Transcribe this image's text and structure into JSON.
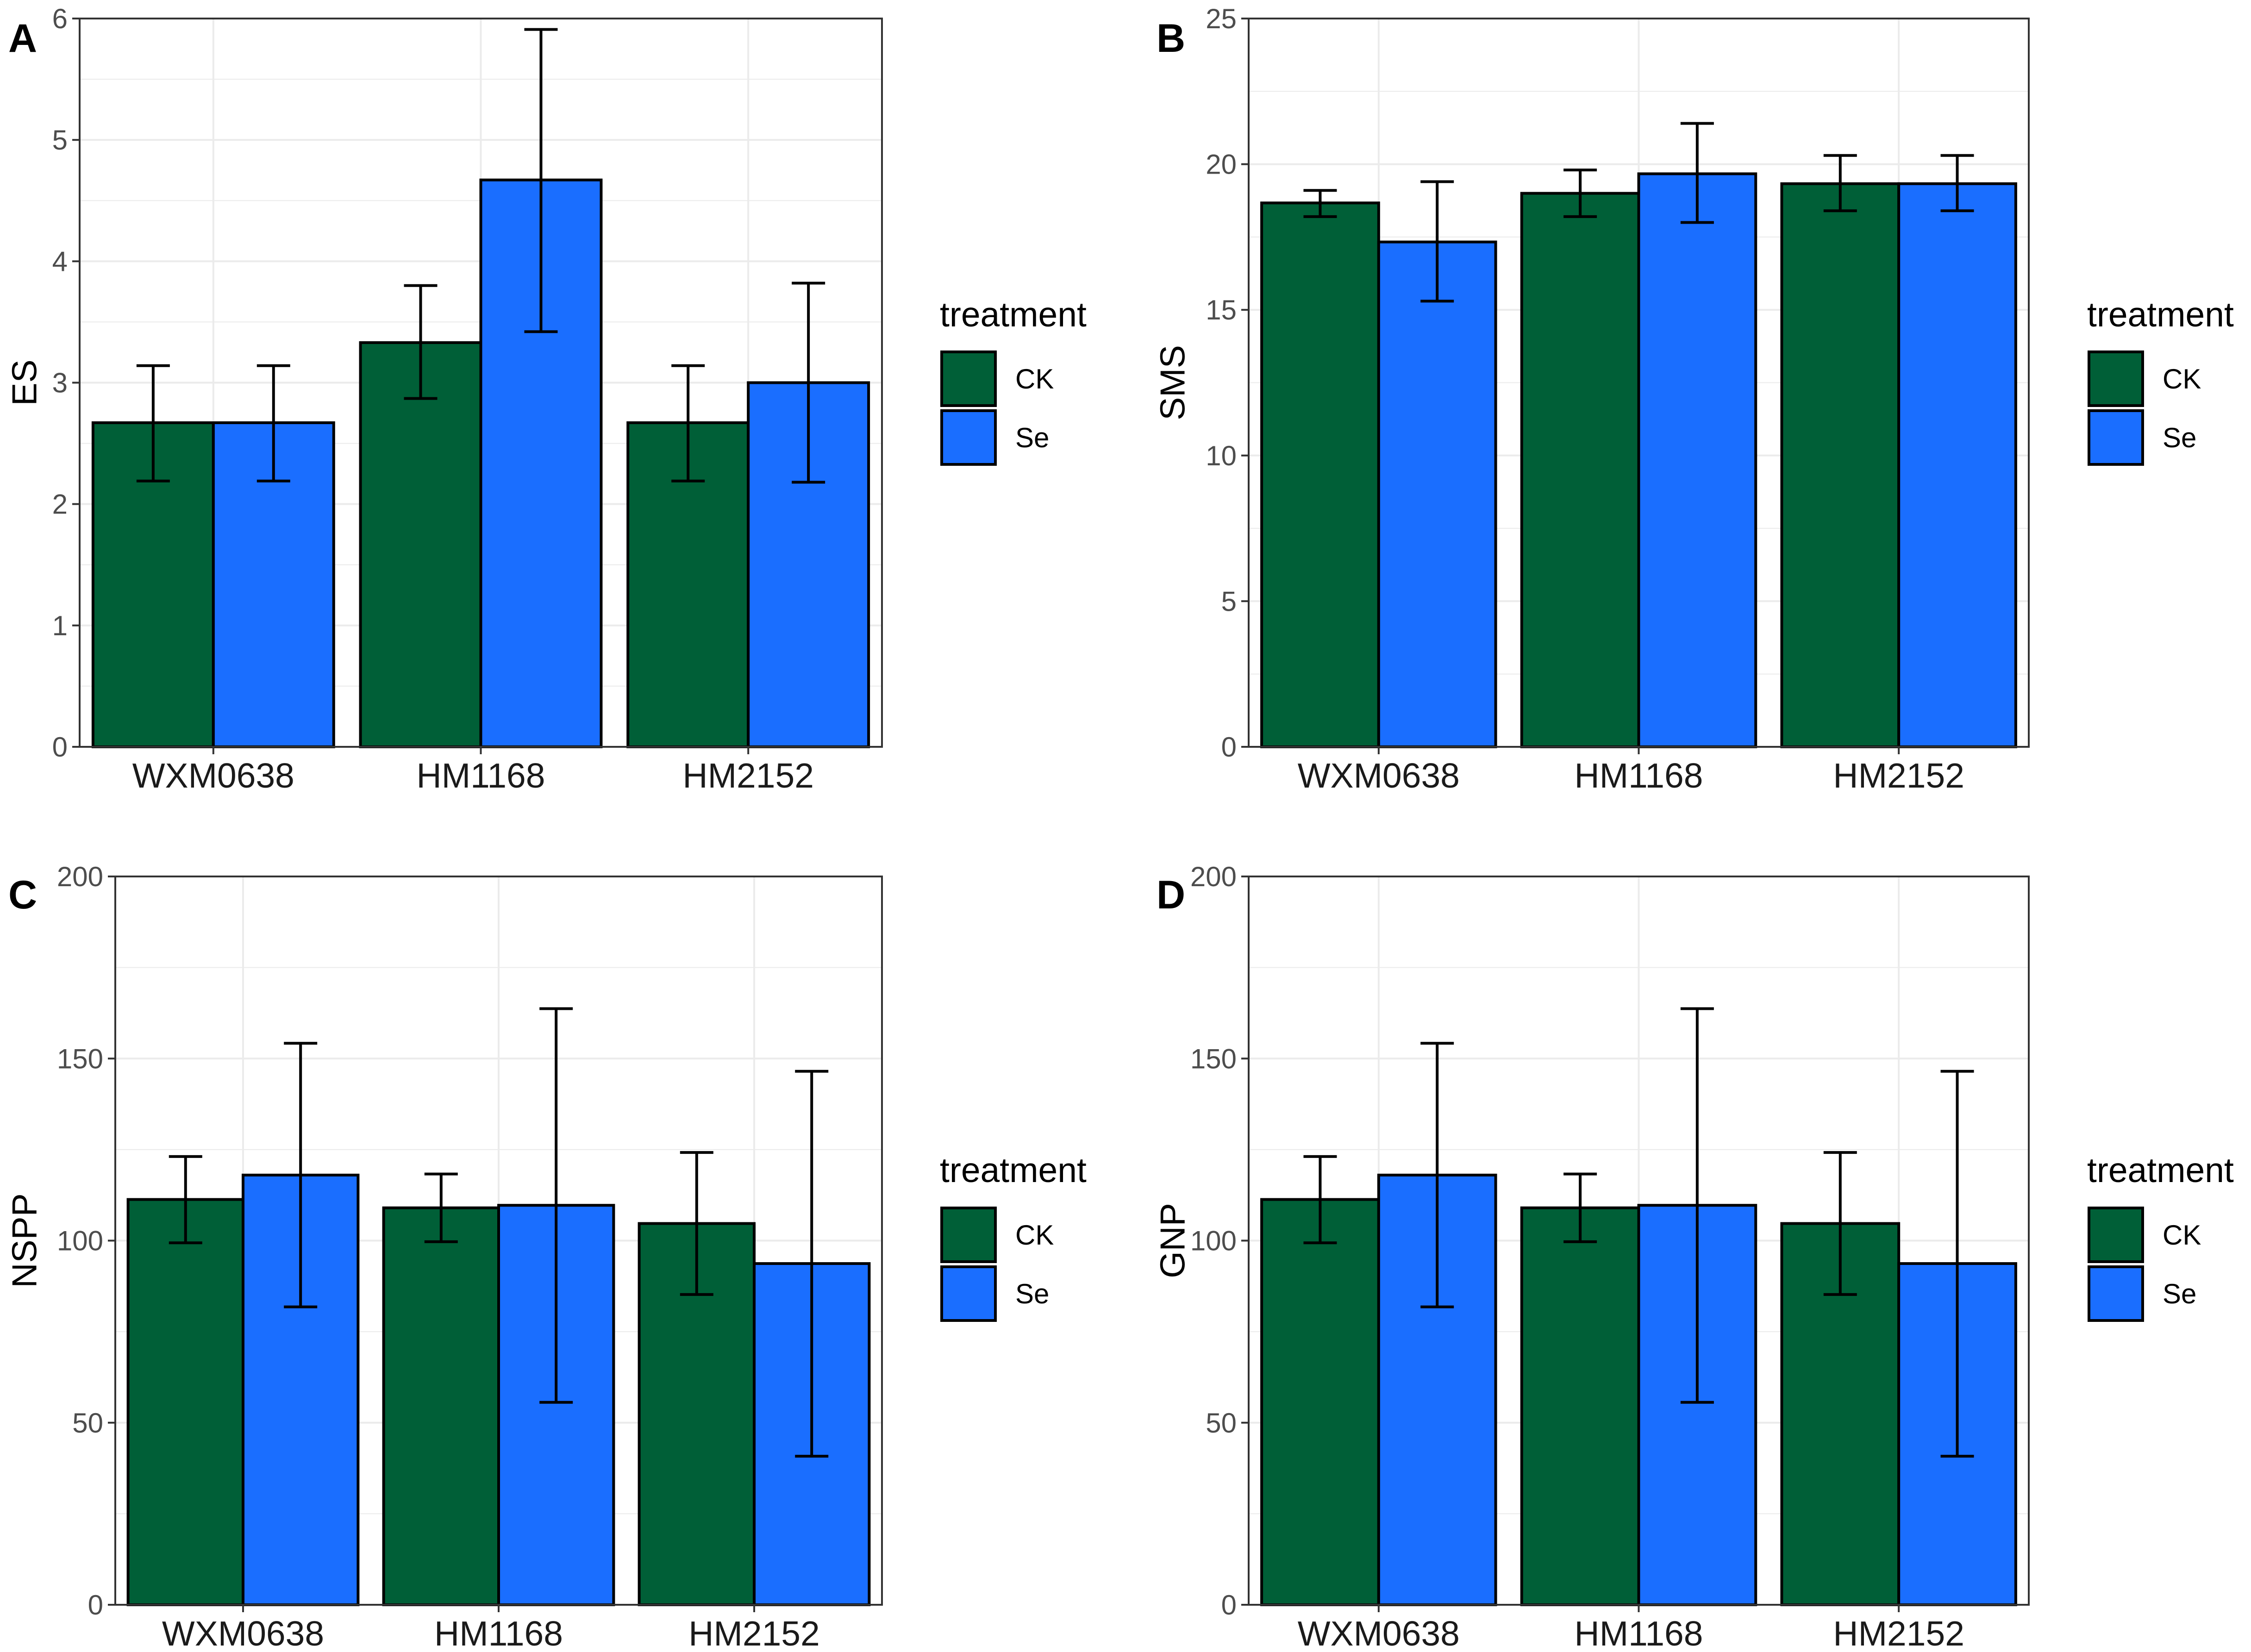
{
  "figure": {
    "legend_title": "treatment",
    "legend_entries": [
      "CK",
      "Se"
    ],
    "colors": {
      "CK": "#005F37",
      "Se": "#1A6EFF",
      "grid": "#EBEBEB",
      "border": "#333333"
    }
  },
  "chart_data": [
    {
      "panel": "A",
      "type": "bar",
      "ylabel": "ES",
      "xlabel": "",
      "categories": [
        "WXM0638",
        "HM1168",
        "HM2152"
      ],
      "ylim": [
        0,
        6
      ],
      "yticks": [
        0,
        1,
        2,
        3,
        4,
        5,
        6
      ],
      "ytick_labels": [
        "0",
        "1",
        "2",
        "3",
        "4",
        "5",
        "6"
      ],
      "grid": true,
      "legend_position": "right",
      "series": [
        {
          "name": "CK",
          "values": [
            2.67,
            3.33,
            2.67
          ],
          "err_low": [
            2.19,
            2.87,
            2.19
          ],
          "err_high": [
            3.14,
            3.8,
            3.14
          ]
        },
        {
          "name": "Se",
          "values": [
            2.67,
            4.67,
            3.0
          ],
          "err_low": [
            2.19,
            3.42,
            2.18
          ],
          "err_high": [
            3.14,
            5.91,
            3.82
          ]
        }
      ]
    },
    {
      "panel": "B",
      "type": "bar",
      "ylabel": "SMS",
      "xlabel": "",
      "categories": [
        "WXM0638",
        "HM1168",
        "HM2152"
      ],
      "ylim": [
        0,
        25
      ],
      "yticks": [
        0,
        5,
        10,
        15,
        20,
        25
      ],
      "ytick_labels": [
        "0",
        "5",
        "10",
        "15",
        "20",
        "25"
      ],
      "grid": true,
      "legend_position": "right",
      "series": [
        {
          "name": "CK",
          "values": [
            18.67,
            19.0,
            19.33
          ],
          "err_low": [
            18.2,
            18.2,
            18.4
          ],
          "err_high": [
            19.1,
            19.8,
            20.3
          ]
        },
        {
          "name": "Se",
          "values": [
            17.33,
            19.67,
            19.33
          ],
          "err_low": [
            15.3,
            18.0,
            18.4
          ],
          "err_high": [
            19.4,
            21.4,
            20.3
          ]
        }
      ]
    },
    {
      "panel": "C",
      "type": "bar",
      "ylabel": "NSPP",
      "xlabel": "",
      "categories": [
        "WXM0638",
        "HM1168",
        "HM2152"
      ],
      "ylim": [
        0,
        200
      ],
      "yticks": [
        0,
        50,
        100,
        150,
        200
      ],
      "ytick_labels": [
        "0",
        "50",
        "100",
        "150",
        "200"
      ],
      "grid": true,
      "legend_position": "right",
      "series": [
        {
          "name": "CK",
          "values": [
            111.3,
            109.0,
            104.7
          ],
          "err_low": [
            99.4,
            99.7,
            85.2
          ],
          "err_high": [
            123.1,
            118.3,
            124.2
          ]
        },
        {
          "name": "Se",
          "values": [
            118.0,
            109.7,
            93.7
          ],
          "err_low": [
            81.8,
            55.6,
            40.8
          ],
          "err_high": [
            154.2,
            163.7,
            146.5
          ]
        }
      ]
    },
    {
      "panel": "D",
      "type": "bar",
      "ylabel": "GNP",
      "xlabel": "",
      "categories": [
        "WXM0638",
        "HM1168",
        "HM2152"
      ],
      "ylim": [
        0,
        200
      ],
      "yticks": [
        0,
        50,
        100,
        150,
        200
      ],
      "ytick_labels": [
        "0",
        "50",
        "100",
        "150",
        "200"
      ],
      "grid": true,
      "legend_position": "right",
      "series": [
        {
          "name": "CK",
          "values": [
            111.3,
            109.0,
            104.7
          ],
          "err_low": [
            99.4,
            99.7,
            85.2
          ],
          "err_high": [
            123.1,
            118.3,
            124.2
          ]
        },
        {
          "name": "Se",
          "values": [
            118.0,
            109.7,
            93.7
          ],
          "err_low": [
            81.8,
            55.6,
            40.8
          ],
          "err_high": [
            154.2,
            163.7,
            146.5
          ]
        }
      ]
    }
  ]
}
